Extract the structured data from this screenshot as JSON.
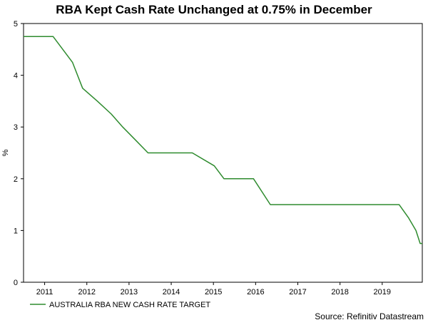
{
  "chart_data": {
    "type": "line",
    "title": "RBA Kept Cash Rate Unchanged at 0.75% in December",
    "xlabel": "",
    "ylabel": "%",
    "ylim": [
      0,
      5
    ],
    "yticks": [
      0,
      1,
      2,
      3,
      4,
      5
    ],
    "xlim": [
      2010.5,
      2019.95
    ],
    "xticks": [
      {
        "label": "2011",
        "x": 2011.0
      },
      {
        "label": "2012",
        "x": 2012.0
      },
      {
        "label": "2013",
        "x": 2013.0
      },
      {
        "label": "2014",
        "x": 2014.0
      },
      {
        "label": "2015",
        "x": 2015.0
      },
      {
        "label": "2016",
        "x": 2016.0
      },
      {
        "label": "2017",
        "x": 2017.0
      },
      {
        "label": "2018",
        "x": 2018.0
      },
      {
        "label": "2019",
        "x": 2019.0
      }
    ],
    "series": [
      {
        "name": "AUSTRALIA RBA NEW CASH RATE TARGET",
        "color": "#2e8b2e",
        "points": [
          [
            2010.5,
            4.75
          ],
          [
            2011.2,
            4.75
          ],
          [
            2011.66,
            4.25
          ],
          [
            2011.9,
            3.75
          ],
          [
            2012.25,
            3.5
          ],
          [
            2012.58,
            3.25
          ],
          [
            2012.85,
            3.0
          ],
          [
            2013.15,
            2.75
          ],
          [
            2013.45,
            2.5
          ],
          [
            2014.5,
            2.5
          ],
          [
            2015.02,
            2.25
          ],
          [
            2015.25,
            2.0
          ],
          [
            2015.95,
            2.0
          ],
          [
            2016.35,
            1.5
          ],
          [
            2019.4,
            1.5
          ],
          [
            2019.62,
            1.25
          ],
          [
            2019.8,
            1.0
          ],
          [
            2019.9,
            0.75
          ],
          [
            2019.95,
            0.75
          ]
        ]
      }
    ],
    "legend_position": "bottom-left",
    "source": "Source: Refinitiv Datastream",
    "grid": false
  }
}
